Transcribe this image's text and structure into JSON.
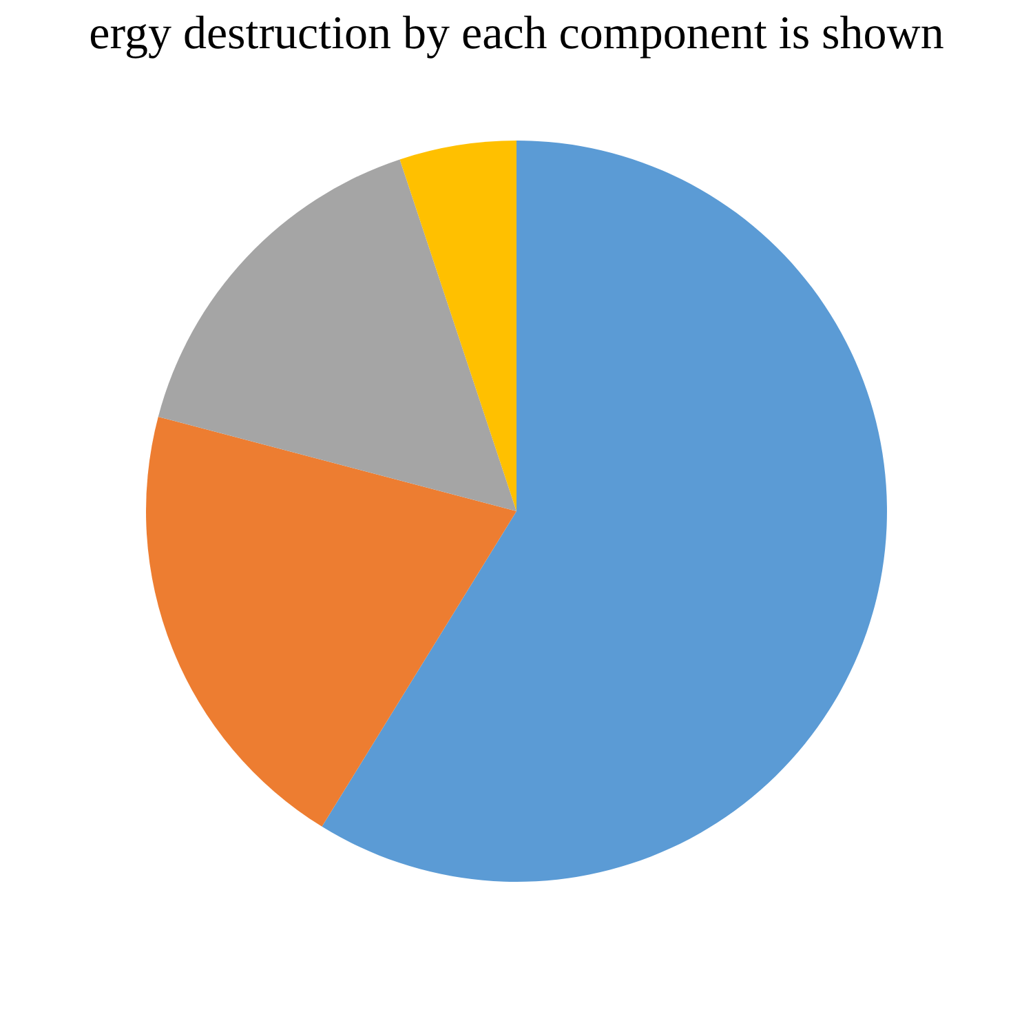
{
  "chart_data": {
    "type": "pie",
    "title": "ergy destruction by each component is shown",
    "categories": [
      null,
      null,
      null,
      null
    ],
    "values": [
      58.8,
      20.3,
      15.8,
      5.1
    ],
    "colors": [
      "#5b9bd5",
      "#ed7d31",
      "#a5a5a5",
      "#ffc000"
    ],
    "legend": false
  }
}
